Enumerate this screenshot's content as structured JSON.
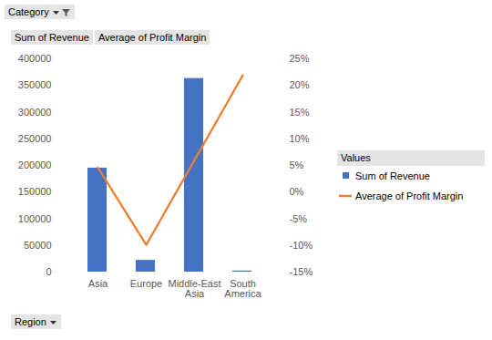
{
  "chart_data": {
    "type": "bar",
    "categories": [
      "Asia",
      "Europe",
      "Middle-East Asia",
      "South America"
    ],
    "series": [
      {
        "name": "Sum of Revenue",
        "type": "bar",
        "color": "#4472c4",
        "values": [
          195000,
          22000,
          363000,
          2000
        ]
      },
      {
        "name": "Average of Profit Margin",
        "type": "line",
        "color": "#ed7d31",
        "axis": "y2",
        "values": [
          4.6,
          -9.9,
          6,
          21.9
        ]
      }
    ],
    "ylim": [
      0,
      400000
    ],
    "yticks": [
      0,
      50000,
      100000,
      150000,
      200000,
      250000,
      300000,
      350000,
      400000
    ],
    "y2lim": [
      -15,
      25
    ],
    "y2ticks": [
      {
        "value": -15,
        "label": "-15%"
      },
      {
        "value": -10,
        "label": "-10%"
      },
      {
        "value": -5,
        "label": "-5%"
      },
      {
        "value": 0,
        "label": "0%"
      },
      {
        "value": 5,
        "label": "5%"
      },
      {
        "value": 10,
        "label": "10%"
      },
      {
        "value": 15,
        "label": "15%"
      },
      {
        "value": 20,
        "label": "20%"
      },
      {
        "value": 25,
        "label": "25%"
      }
    ],
    "grid": false,
    "legend": "right",
    "legend_title": "Values",
    "annotations": [
      "Category",
      "Sum of Revenue",
      "Average of Profit Margin",
      "Region"
    ]
  }
}
